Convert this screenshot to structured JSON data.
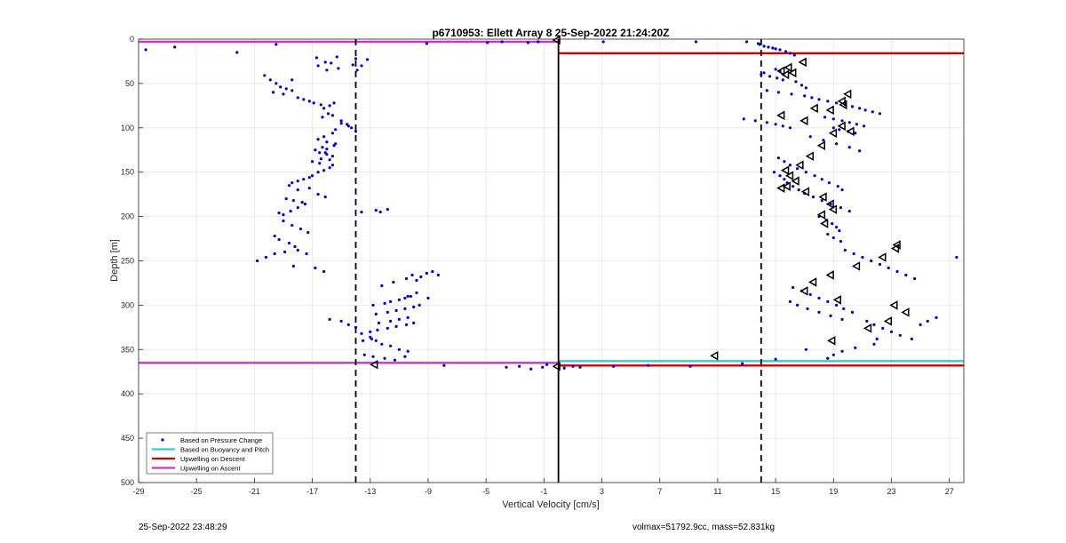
{
  "chart_data": {
    "type": "scatter",
    "title": "p6710953: Ellett Array 8 25-Sep-2022 21:24:20Z",
    "xlabel": "Vertical Velocity [cm/s]",
    "ylabel": "Depth [m]",
    "xlim": [
      -29,
      28
    ],
    "ylim": [
      0,
      500
    ],
    "y_reversed": true,
    "grid": true,
    "x_ticks": [
      -29,
      -25,
      -21,
      -17,
      -13,
      -9,
      -5,
      -1,
      3,
      7,
      11,
      15,
      19,
      23,
      27
    ],
    "y_ticks": [
      0,
      50,
      100,
      150,
      200,
      250,
      300,
      350,
      400,
      450,
      500
    ],
    "legend_position": "bottom-left",
    "legend": [
      {
        "label": "Based on Pressure Change",
        "color": "#0000cc",
        "style": "dot"
      },
      {
        "label": "Based on Buoyancy and Pitch",
        "color": "#33cccc",
        "style": "line"
      },
      {
        "label": "Upwelling on Descent",
        "color": "#cc0000",
        "style": "line"
      },
      {
        "label": "Upwelling on Ascent",
        "color": "#cc33cc",
        "style": "line"
      }
    ],
    "vertical_lines": [
      {
        "x": -14,
        "style": "dashed",
        "color": "#000000"
      },
      {
        "x": 14,
        "style": "dashed",
        "color": "#000000"
      },
      {
        "x": 0,
        "style": "solid",
        "color": "#000000"
      }
    ],
    "horizontal_lines": [
      {
        "name": "Upwelling on Ascent",
        "color": "#cc33cc",
        "segments": [
          [
            -29,
            0,
            3
          ],
          [
            -29,
            0,
            365
          ]
        ]
      },
      {
        "name": "Upwelling on Descent",
        "color": "#cc0000",
        "segments": [
          [
            0,
            28,
            16
          ],
          [
            0,
            28,
            368
          ]
        ]
      },
      {
        "name": "Based on Buoyancy and Pitch",
        "color": "#33cccc",
        "segments": [
          [
            0,
            28,
            363
          ]
        ]
      }
    ],
    "series": [
      {
        "name": "Based on Pressure Change",
        "color": "#0000cc",
        "x": [
          -28.5,
          -26.5,
          -22.2,
          -9.1,
          -19.5,
          -4.9,
          -3.9,
          -2.1,
          -1.4,
          3.1,
          9.5,
          -16.7,
          -16.1,
          -15.3,
          -14.0,
          -13.2,
          -16.6,
          -15.7,
          -14.2,
          -13.6,
          -16.0,
          -15.2,
          -13.9,
          -20.3,
          -19.9,
          -19.5,
          -19.2,
          -18.8,
          -18.4,
          -19.7,
          -19.0,
          -18.4,
          -18.0,
          -17.6,
          -17.2,
          -16.9,
          -16.4,
          -16.2,
          -15.8,
          -15.5,
          -15.9,
          -16.3,
          -15.6,
          -15.0,
          -14.6,
          -14.3,
          -14.0,
          -14.5,
          -15.0,
          -15.4,
          -15.6,
          -16.2,
          -16.6,
          -16.0,
          -15.4,
          -16.3,
          -16.8,
          -16.1,
          -15.6,
          -16.4,
          -17.0,
          -16.5,
          -18.4,
          -18.0,
          -17.6,
          -17.2,
          -17.0,
          -16.6,
          -16.2,
          -15.8,
          -15.6,
          -15.8,
          -16.0,
          -16.5,
          -16.0,
          -15.5,
          -18.0,
          -17.2,
          -16.6,
          -16.1,
          -18.6,
          -18.8,
          -18.3,
          -17.7,
          -19.3,
          -19.0,
          -18.5,
          -18.0,
          -17.5,
          -19.0,
          -18.4,
          -17.8,
          -17.3,
          -19.6,
          -19.3,
          -18.6,
          -18.2,
          -18.0,
          -17.4,
          -20.8,
          -20.2,
          -19.6,
          -18.9,
          -18.3,
          -16.8,
          -16.2,
          -13.6,
          -12.6,
          -12.3,
          -11.8,
          -12.2,
          -11.4,
          -10.5,
          -10.1,
          -9.8,
          -9.5,
          -9.1,
          -8.7,
          -8.3,
          -10.4,
          -9.8,
          -9.0,
          -12.8,
          -12.0,
          -11.6,
          -11.0,
          -10.6,
          -10.2,
          -12.6,
          -11.8,
          -11.2,
          -10.6,
          -10.0,
          -9.6,
          -12.4,
          -11.6,
          -11.0,
          -10.4,
          -13.0,
          -12.5,
          -11.8,
          -11.2,
          -10.5,
          -10.0,
          -13.5,
          -12.9,
          -12.2,
          -11.6,
          -11.0,
          -10.4,
          -13.4,
          -12.8,
          -12.0,
          -11.3,
          -10.6,
          -15.8,
          -15.0,
          -14.5,
          -14.0,
          -13.6,
          -13.0,
          -12.6,
          -7.9,
          -3.6,
          -2.7,
          -1.9,
          -1.1,
          -0.8,
          0.4,
          1.0,
          1.5,
          3.8,
          6.2,
          9.1,
          12.7,
          13.0,
          13.8,
          13.9,
          14.2,
          14.5,
          14.8,
          15.0,
          15.3,
          15.7,
          16.0,
          16.3,
          15.0,
          15.3,
          14.2,
          14.0,
          14.6,
          15.1,
          15.5,
          16.4,
          16.8,
          17.1,
          14.4,
          15.2,
          16.1,
          17.0,
          17.5,
          18.0,
          18.6,
          19.2,
          19.8,
          20.3,
          20.8,
          21.2,
          21.7,
          22.2,
          18.4,
          19.0,
          19.6,
          20.1,
          20.6,
          21.1,
          19.0,
          19.4,
          20.0,
          20.5,
          12.8,
          13.6,
          14.4,
          15.0,
          15.5,
          16.0,
          17.4,
          18.3,
          19.2,
          20.1,
          20.8,
          14.9,
          15.3,
          15.6,
          15.8,
          16.2,
          16.6,
          17.0,
          17.6,
          18.2,
          18.8,
          19.5,
          20.1,
          15.2,
          15.6,
          16.0,
          16.5,
          17.1,
          17.7,
          18.2,
          18.7,
          19.3,
          19.6,
          18.0,
          18.5,
          18.9,
          19.2,
          19.4,
          18.6,
          19.0,
          19.5,
          19.8,
          20.4,
          21.0,
          21.6,
          22.2,
          22.8,
          23.4,
          24.0,
          24.6,
          27.5,
          16.2,
          16.8,
          17.4,
          18.0,
          18.6,
          19.2,
          19.7,
          20.3,
          16.0,
          16.5,
          17.2,
          18.0,
          18.8,
          19.6,
          21.3,
          21.8,
          22.4,
          23.0,
          23.6,
          24.4,
          25.0,
          25.5,
          26.1,
          22.0,
          21.8,
          20.5,
          19.6,
          19.0,
          18.6,
          17.1,
          15.0
        ],
        "y": [
          12,
          9,
          15,
          5,
          6,
          4,
          3,
          4,
          3,
          3,
          3,
          21,
          26,
          20,
          22,
          23,
          30,
          27,
          29,
          30,
          35,
          33,
          35,
          41,
          46,
          50,
          54,
          56,
          46,
          60,
          62,
          58,
          66,
          68,
          70,
          72,
          74,
          78,
          75,
          72,
          84,
          88,
          86,
          92,
          96,
          100,
          104,
          98,
          95,
          102,
          106,
          110,
          113,
          116,
          118,
          122,
          125,
          128,
          132,
          135,
          138,
          140,
          162,
          160,
          158,
          156,
          154,
          150,
          148,
          145,
          142,
          136,
          130,
          128,
          124,
          120,
          170,
          168,
          175,
          178,
          165,
          180,
          182,
          184,
          196,
          198,
          194,
          190,
          186,
          205,
          210,
          214,
          218,
          222,
          226,
          230,
          234,
          238,
          242,
          250,
          246,
          242,
          240,
          256,
          258,
          262,
          195,
          193,
          195,
          192,
          278,
          274,
          270,
          266,
          272,
          268,
          264,
          262,
          266,
          290,
          286,
          292,
          300,
          298,
          296,
          294,
          292,
          290,
          310,
          308,
          306,
          304,
          302,
          300,
          320,
          318,
          316,
          314,
          330,
          328,
          326,
          324,
          322,
          320,
          340,
          338,
          344,
          346,
          350,
          352,
          356,
          358,
          360,
          362,
          358,
          316,
          318,
          322,
          325,
          332,
          336,
          340,
          368,
          370,
          369,
          372,
          370,
          367,
          371,
          369,
          370,
          369,
          368,
          369,
          366,
          3,
          5,
          6,
          8,
          9,
          10,
          11,
          12,
          14,
          16,
          18,
          34,
          36,
          38,
          40,
          42,
          44,
          46,
          48,
          52,
          55,
          58,
          60,
          62,
          64,
          66,
          68,
          70,
          72,
          74,
          76,
          78,
          80,
          82,
          84,
          88,
          90,
          92,
          94,
          96,
          98,
          100,
          102,
          104,
          106,
          90,
          92,
          94,
          96,
          98,
          100,
          110,
          114,
          118,
          122,
          126,
          150,
          154,
          158,
          162,
          166,
          170,
          174,
          178,
          182,
          186,
          190,
          194,
          134,
          138,
          142,
          146,
          150,
          154,
          158,
          162,
          166,
          170,
          200,
          204,
          208,
          212,
          216,
          220,
          224,
          228,
          238,
          242,
          246,
          250,
          254,
          258,
          262,
          266,
          270,
          246,
          280,
          284,
          288,
          292,
          296,
          300,
          304,
          308,
          296,
          300,
          304,
          308,
          312,
          316,
          318,
          322,
          326,
          330,
          334,
          338,
          322,
          318,
          314,
          338,
          344,
          348,
          352,
          356,
          360,
          350,
          361
        ]
      },
      {
        "name": "Based on Buoyancy and Pitch",
        "color": "#000000",
        "marker": "triangle-left",
        "x": [
          16.9,
          15.9,
          15.4,
          15.7,
          16.2,
          20.0,
          19.6,
          18.8,
          19.7,
          17.7,
          15.4,
          17.0,
          19.6,
          19.0,
          20.2,
          18.2,
          17.4,
          16.7,
          15.7,
          16.0,
          16.4,
          15.8,
          15.4,
          17.1,
          18.3,
          18.8,
          19.0,
          18.2,
          18.4,
          23.4,
          22.4,
          20.6,
          23.3,
          18.8,
          17.6,
          17.0,
          19.3,
          23.2,
          24.0,
          22.8,
          21.4,
          18.9,
          -0.1,
          10.8,
          -12.7,
          -0.1
        ],
        "y": [
          26,
          32,
          36,
          40,
          38,
          62,
          70,
          80,
          74,
          78,
          86,
          92,
          98,
          106,
          104,
          120,
          132,
          142,
          148,
          154,
          160,
          166,
          168,
          172,
          178,
          186,
          192,
          198,
          208,
          232,
          246,
          256,
          236,
          266,
          274,
          284,
          294,
          300,
          308,
          318,
          326,
          340,
          1,
          357,
          367,
          369
        ]
      }
    ]
  },
  "footer": {
    "timestamp": "25-Sep-2022 23:48:29",
    "info": "volmax=51792.9cc, mass=52.831kg"
  }
}
